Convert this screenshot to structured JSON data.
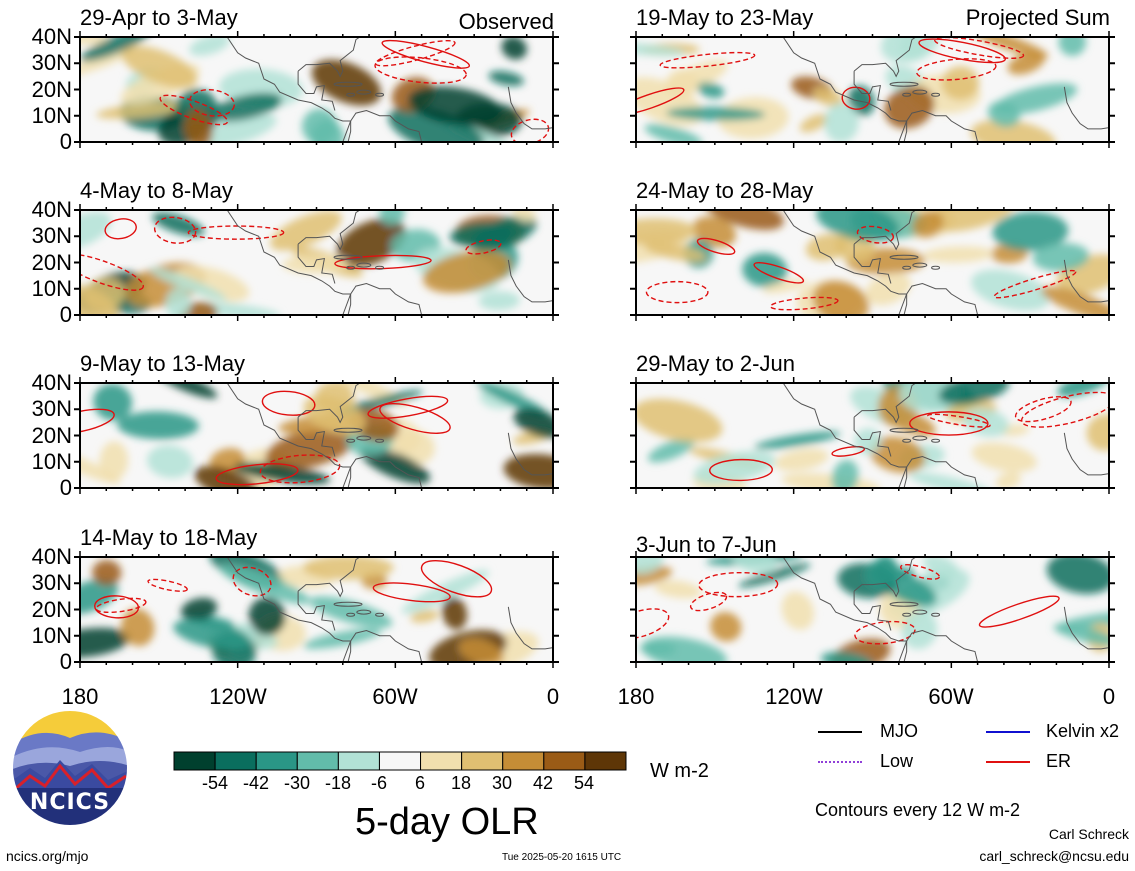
{
  "chart_data": {
    "type": "heatmap",
    "title": "5-day OLR",
    "units": "W m-2",
    "x_axis": {
      "range": [
        -180,
        0
      ],
      "ticks": [
        "180",
        "120W",
        "60W",
        "0"
      ]
    },
    "y_axis": {
      "range": [
        0,
        40
      ],
      "ticks": [
        "0",
        "10N",
        "20N",
        "30N",
        "40N"
      ]
    },
    "colorbar": {
      "tick_labels": [
        "-54",
        "-42",
        "-30",
        "-18",
        "-6",
        "6",
        "18",
        "30",
        "42",
        "54"
      ],
      "colors": [
        "#00402e",
        "#0a6e5e",
        "#2a9686",
        "#62bcaa",
        "#b2e2d6",
        "#f7f7f7",
        "#f1dfae",
        "#dfbf72",
        "#c58d36",
        "#9a5b16",
        "#5e3607"
      ]
    },
    "panels": [
      {
        "title": "29-Apr to 3-May",
        "label": "Observed",
        "column": 0,
        "row": 0
      },
      {
        "title": "4-May to 8-May",
        "column": 0,
        "row": 1
      },
      {
        "title": "9-May to 13-May",
        "column": 0,
        "row": 2
      },
      {
        "title": "14-May to 18-May",
        "column": 0,
        "row": 3
      },
      {
        "title": "19-May to 23-May",
        "label": "Projected Sum",
        "column": 1,
        "row": 0
      },
      {
        "title": "24-May to 28-May",
        "column": 1,
        "row": 1
      },
      {
        "title": "29-May to 2-Jun",
        "column": 1,
        "row": 2
      },
      {
        "title": "3-Jun to 7-Jun",
        "column": 1,
        "row": 3
      }
    ],
    "legend": [
      {
        "name": "MJO",
        "color": "#000000",
        "style": "solid"
      },
      {
        "name": "Kelvin x2",
        "color": "#1010d0",
        "style": "solid"
      },
      {
        "name": "Low",
        "color": "#9040d8",
        "style": "dotted"
      },
      {
        "name": "ER",
        "color": "#e01010",
        "style": "solid"
      }
    ],
    "contour_note": "Contours every 12 W m-2"
  },
  "logo": {
    "text": "NCICS"
  },
  "footer": {
    "url": "ncics.org/mjo",
    "timestamp": "Tue 2025-05-20 1615 UTC",
    "author": "Carl Schreck",
    "email": "carl_schreck@ncsu.edu"
  }
}
